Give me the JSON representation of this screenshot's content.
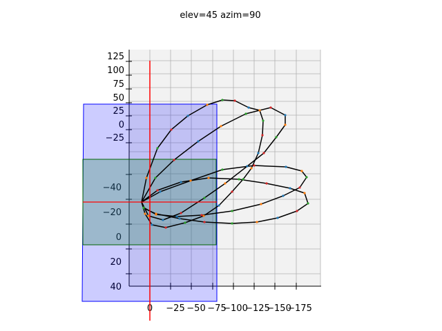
{
  "chart_data": {
    "type": "3d-line",
    "title": "elev=45 azim=90",
    "xlabel": "",
    "ylabel": "",
    "zlabel": "",
    "x_ticks": [
      "0",
      "−25",
      "−50",
      "−75",
      "−100",
      "−125",
      "−150",
      "−175"
    ],
    "y_ticks_upper": [
      "125",
      "100",
      "75",
      "50",
      "25",
      "0",
      "−25"
    ],
    "z_ticks": [
      "−40",
      "−20",
      "0",
      "20",
      "40"
    ],
    "grid": true,
    "colors": {
      "curve": "#000000",
      "axis_line": "#ff0000",
      "plane_blue": "#0000ff",
      "plane_green": "#006400",
      "pane": "#f2f2f2",
      "grid": "#b0b0b0",
      "marker_palette": [
        "#1f77b4",
        "#ff7f0e",
        "#2ca02c",
        "#d62728"
      ]
    },
    "loops": [
      {
        "name": "",
        "tip": [
          -130,
          110
        ],
        "markers": [
          "#d62728",
          "#2ca02c"
        ]
      },
      {
        "name": "",
        "tip": [
          -175,
          10
        ],
        "markers": [
          "#ff7f0e"
        ]
      },
      {
        "name": "",
        "tip": [
          -175,
          -25
        ],
        "markers": [
          "#1f77b4"
        ]
      }
    ]
  }
}
